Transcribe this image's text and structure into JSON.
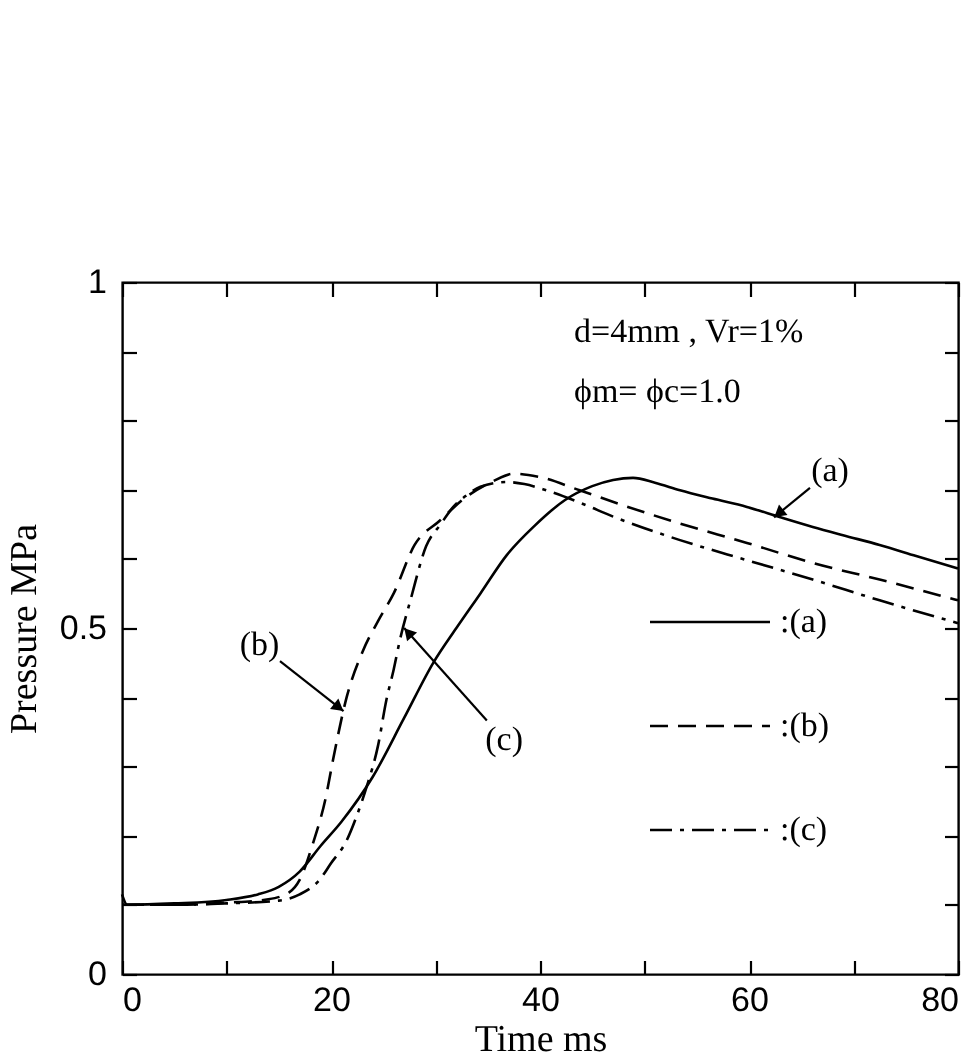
{
  "chart_data": {
    "type": "line",
    "xlabel": "Time ms",
    "ylabel": "Pressure MPa",
    "xlim": [
      0,
      80
    ],
    "ylim": [
      0,
      1
    ],
    "xticks": [
      0,
      {
        "value": 10,
        "label": null
      },
      20,
      {
        "value": 30,
        "label": null
      },
      40,
      {
        "value": 50,
        "label": null
      },
      60,
      {
        "value": 70,
        "label": null
      },
      80
    ],
    "yticks": [
      0,
      {
        "value": 0.1,
        "label": null
      },
      {
        "value": 0.2,
        "label": null
      },
      {
        "value": 0.3,
        "label": null
      },
      {
        "value": 0.4,
        "label": null
      },
      0.5,
      {
        "value": 0.6,
        "label": null
      },
      {
        "value": 0.7,
        "label": null
      },
      {
        "value": 0.8,
        "label": null
      },
      {
        "value": 0.9,
        "label": null
      },
      1
    ],
    "grid": false,
    "legend": "bottom right",
    "annotations": [
      "d=4mm , Vr=1%",
      "ϕm= ϕc=1.0",
      {
        "text": "(a)",
        "x": 62.4,
        "y": 0.66
      },
      {
        "text": "(b)",
        "x": 21.2,
        "y": 0.38
      },
      {
        "text": "(c)",
        "x": 27,
        "y": 0.5
      }
    ],
    "series": [
      {
        "name": ":(a)",
        "color": "#000000",
        "line_style": "solid",
        "x": [
          0,
          0.5,
          5,
          10,
          13,
          15,
          17,
          19,
          21,
          24,
          27,
          29.8,
          32,
          34.3,
          36.8,
          39.5,
          42.4,
          45,
          47,
          48.9,
          51,
          53.4,
          56.5,
          59.8,
          63,
          66.1,
          69,
          72.5,
          76,
          80
        ],
        "values": [
          0.115,
          0.1,
          0.102,
          0.107,
          0.115,
          0.126,
          0.148,
          0.185,
          0.22,
          0.285,
          0.37,
          0.45,
          0.5,
          0.55,
          0.605,
          0.648,
          0.685,
          0.705,
          0.714,
          0.717,
          0.71,
          0.699,
          0.687,
          0.675,
          0.66,
          0.646,
          0.634,
          0.62,
          0.604,
          0.586
        ]
      },
      {
        "name": ":(b)",
        "color": "#000000",
        "line_style": "dashed",
        "x": [
          0,
          5,
          10,
          14,
          16,
          17,
          18.3,
          19.5,
          20.2,
          21.5,
          23,
          24.5,
          26,
          28,
          30.4,
          33,
          35.5,
          37.5,
          40,
          43.8,
          48,
          53.4,
          59.8,
          66.1,
          72.5,
          80
        ],
        "values": [
          0.1,
          0.1,
          0.103,
          0.108,
          0.118,
          0.136,
          0.19,
          0.255,
          0.31,
          0.4,
          0.465,
          0.51,
          0.55,
          0.62,
          0.655,
          0.69,
          0.712,
          0.723,
          0.718,
          0.699,
          0.677,
          0.651,
          0.623,
          0.594,
          0.57,
          0.54
        ]
      },
      {
        "name": ":(c)",
        "color": "#000000",
        "line_style": "dashdot",
        "x": [
          0,
          5,
          10,
          15,
          17,
          18.9,
          20,
          21.5,
          22.5,
          23.4,
          24.5,
          25.3,
          26,
          26.6,
          27.6,
          29.1,
          30.5,
          31.7,
          33,
          34.3,
          36.8,
          38.5,
          40.6,
          44,
          47,
          53.4,
          59.8,
          66.1,
          72.5,
          80
        ],
        "values": [
          0.1,
          0.1,
          0.102,
          0.106,
          0.115,
          0.136,
          0.16,
          0.193,
          0.23,
          0.27,
          0.33,
          0.396,
          0.44,
          0.483,
          0.54,
          0.618,
          0.65,
          0.675,
          0.692,
          0.704,
          0.711,
          0.708,
          0.699,
          0.68,
          0.661,
          0.627,
          0.598,
          0.57,
          0.54,
          0.507
        ]
      }
    ]
  }
}
